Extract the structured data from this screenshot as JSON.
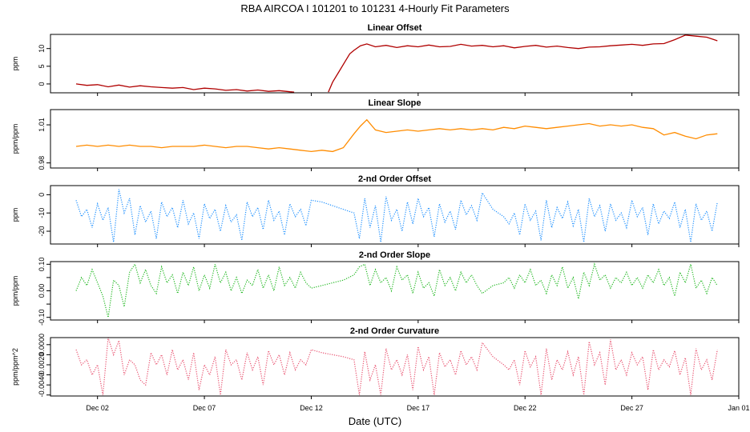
{
  "title": "RBA   AIRCOA I   101201 to 101231   4-Hourly Fit Parameters",
  "chart_data": [
    {
      "type": "line",
      "title": "Linear Offset",
      "ylabel": "ppm",
      "color": "#b00000",
      "dotted": false,
      "ylim": [
        -2.5,
        14
      ],
      "yticks": [
        0,
        5,
        10
      ],
      "ytick_labels": [
        "0",
        "5",
        "10"
      ],
      "x": [
        1.0,
        1.5,
        2.0,
        2.5,
        3.0,
        3.5,
        4.0,
        4.5,
        5.0,
        5.5,
        6.0,
        6.5,
        7.0,
        7.5,
        8.0,
        8.5,
        9.0,
        9.5,
        10.0,
        10.5,
        11.0,
        11.2,
        11.6,
        12.0,
        12.4,
        12.8,
        13.0,
        13.3,
        13.6,
        13.8,
        14.0,
        14.3,
        14.6,
        15.0,
        15.5,
        16.0,
        16.5,
        17.0,
        17.5,
        18.0,
        18.5,
        19.0,
        19.5,
        20.0,
        20.5,
        21.0,
        21.5,
        22.0,
        22.5,
        23.0,
        23.5,
        24.0,
        24.5,
        25.0,
        25.5,
        26.0,
        26.5,
        27.0,
        27.5,
        28.0,
        28.5,
        29.0,
        29.5,
        30.0,
        30.5,
        31.0
      ],
      "y": [
        0.0,
        -0.4,
        -0.2,
        -0.8,
        -0.3,
        -0.9,
        -0.5,
        -0.8,
        -1.0,
        -1.2,
        -1.0,
        -1.6,
        -1.2,
        -1.4,
        -1.8,
        -1.6,
        -2.0,
        -1.7,
        -2.1,
        -1.9,
        -2.2,
        -2.3,
        null,
        -2.4,
        null,
        -2.3,
        0.5,
        3.5,
        6.5,
        8.5,
        9.5,
        10.8,
        11.3,
        10.5,
        10.9,
        10.3,
        10.8,
        10.5,
        11.0,
        10.5,
        10.6,
        11.2,
        10.7,
        10.9,
        10.5,
        10.8,
        10.2,
        10.6,
        10.9,
        10.4,
        10.7,
        10.3,
        10.0,
        10.4,
        10.5,
        10.8,
        11.0,
        11.2,
        10.9,
        11.3,
        11.4,
        12.5,
        13.8,
        13.5,
        13.2,
        12.2
      ]
    },
    {
      "type": "line",
      "title": "Linear Slope",
      "ylabel": "ppm/ppm",
      "color": "#ff8c00",
      "dotted": false,
      "ylim": [
        0.976,
        1.022
      ],
      "yticks": [
        0.98,
        1.01
      ],
      "ytick_labels": [
        "0.98",
        "1.01"
      ],
      "x": [
        1.0,
        1.5,
        2.0,
        2.5,
        3.0,
        3.5,
        4.0,
        4.5,
        5.0,
        5.5,
        6.0,
        6.5,
        7.0,
        7.5,
        8.0,
        8.5,
        9.0,
        9.5,
        10.0,
        10.5,
        11.0,
        11.5,
        12.0,
        12.5,
        13.0,
        13.5,
        14.0,
        14.3,
        14.6,
        15.0,
        15.5,
        16.0,
        16.5,
        17.0,
        17.5,
        18.0,
        18.5,
        19.0,
        19.5,
        20.0,
        20.5,
        21.0,
        21.5,
        22.0,
        22.5,
        23.0,
        23.5,
        24.0,
        24.5,
        25.0,
        25.5,
        26.0,
        26.5,
        27.0,
        27.5,
        28.0,
        28.5,
        29.0,
        29.5,
        30.0,
        30.5,
        31.0
      ],
      "y": [
        0.993,
        0.994,
        0.993,
        0.994,
        0.993,
        0.994,
        0.993,
        0.993,
        0.992,
        0.993,
        0.993,
        0.993,
        0.994,
        0.993,
        0.992,
        0.993,
        0.993,
        0.992,
        0.991,
        0.992,
        0.991,
        0.99,
        0.989,
        0.99,
        0.989,
        0.992,
        1.003,
        1.009,
        1.014,
        1.006,
        1.004,
        1.005,
        1.006,
        1.005,
        1.006,
        1.007,
        1.006,
        1.007,
        1.006,
        1.007,
        1.006,
        1.008,
        1.007,
        1.009,
        1.008,
        1.007,
        1.008,
        1.009,
        1.01,
        1.011,
        1.009,
        1.01,
        1.009,
        1.01,
        1.008,
        1.007,
        1.002,
        1.004,
        1.001,
        0.999,
        1.002,
        1.003
      ]
    },
    {
      "type": "line",
      "title": "2-nd Order Offset",
      "ylabel": "ppm",
      "color": "#1e90ff",
      "dotted": true,
      "ylim": [
        -27,
        5
      ],
      "yticks": [
        0,
        -10,
        -20
      ],
      "extra_tick": -25,
      "ytick_labels": [
        "0",
        "-10",
        "-20"
      ],
      "x": [
        1.0,
        1.25,
        1.5,
        1.75,
        2.0,
        2.25,
        2.5,
        2.75,
        3.0,
        3.25,
        3.5,
        3.75,
        4.0,
        4.25,
        4.5,
        4.75,
        5.0,
        5.25,
        5.5,
        5.75,
        6.0,
        6.25,
        6.5,
        6.75,
        7.0,
        7.25,
        7.5,
        7.75,
        8.0,
        8.25,
        8.5,
        8.75,
        9.0,
        9.25,
        9.5,
        9.75,
        10.0,
        10.25,
        10.5,
        10.75,
        11.0,
        11.25,
        11.5,
        11.75,
        12.0,
        12.5,
        13.0,
        13.5,
        14.0,
        14.25,
        14.5,
        14.75,
        15.0,
        15.25,
        15.5,
        15.75,
        16.0,
        16.25,
        16.5,
        16.75,
        17.0,
        17.25,
        17.5,
        17.75,
        18.0,
        18.25,
        18.5,
        18.75,
        19.0,
        19.25,
        19.5,
        19.75,
        20.0,
        20.5,
        21.0,
        21.25,
        21.5,
        21.75,
        22.0,
        22.25,
        22.5,
        22.75,
        23.0,
        23.25,
        23.5,
        23.75,
        24.0,
        24.25,
        24.5,
        24.75,
        25.0,
        25.25,
        25.5,
        25.75,
        26.0,
        26.25,
        26.5,
        26.75,
        27.0,
        27.25,
        27.5,
        27.75,
        28.0,
        28.25,
        28.5,
        28.75,
        29.0,
        29.25,
        29.5,
        29.75,
        30.0,
        30.25,
        30.5,
        30.75,
        31.0
      ],
      "y": [
        -3,
        -12,
        -8,
        -18,
        -5,
        -14,
        -7,
        -26,
        3,
        -10,
        -2,
        -22,
        -6,
        -15,
        -9,
        -24,
        -4,
        -12,
        -7,
        -18,
        -3,
        -16,
        -10,
        -24,
        -5,
        -13,
        -8,
        -20,
        -6,
        -15,
        -11,
        -25,
        -4,
        -12,
        -7,
        -19,
        -3,
        -14,
        -9,
        -22,
        -5,
        -12,
        -8,
        -17,
        -3,
        -4,
        -6,
        -8,
        -10,
        -24,
        -2,
        -18,
        -6,
        -26,
        -1,
        -14,
        -8,
        -20,
        -4,
        -16,
        -2,
        -12,
        -7,
        -23,
        -5,
        -15,
        -9,
        -19,
        -3,
        -11,
        -6,
        -14,
        1,
        -8,
        -12,
        -16,
        -10,
        -22,
        -5,
        -14,
        -9,
        -25,
        -3,
        -18,
        -7,
        -13,
        -4,
        -17,
        -8,
        -26,
        -2,
        -12,
        -6,
        -20,
        -5,
        -14,
        -10,
        -18,
        -3,
        -12,
        -7,
        -22,
        -5,
        -16,
        -9,
        -13,
        -4,
        -18,
        -8,
        -26,
        -5,
        -14,
        -9,
        -20,
        -4
      ]
    },
    {
      "type": "line",
      "title": "2-nd Order Slope",
      "ylabel": "ppm/ppm",
      "color": "#22b822",
      "dotted": true,
      "ylim": [
        -0.11,
        0.11
      ],
      "yticks": [
        0.1,
        0.05,
        0.0,
        -0.05,
        -0.1
      ],
      "ytick_labels": [
        "0.10",
        "",
        "0.00",
        "",
        "-0.10"
      ],
      "x": [
        1.0,
        1.25,
        1.5,
        1.75,
        2.0,
        2.25,
        2.5,
        2.75,
        3.0,
        3.25,
        3.5,
        3.75,
        4.0,
        4.25,
        4.5,
        4.75,
        5.0,
        5.25,
        5.5,
        5.75,
        6.0,
        6.25,
        6.5,
        6.75,
        7.0,
        7.25,
        7.5,
        7.75,
        8.0,
        8.25,
        8.5,
        8.75,
        9.0,
        9.25,
        9.5,
        9.75,
        10.0,
        10.25,
        10.5,
        10.75,
        11.0,
        11.25,
        11.5,
        11.75,
        12.0,
        12.5,
        13.0,
        13.5,
        14.0,
        14.25,
        14.5,
        14.75,
        15.0,
        15.25,
        15.5,
        15.75,
        16.0,
        16.25,
        16.5,
        16.75,
        17.0,
        17.25,
        17.5,
        17.75,
        18.0,
        18.25,
        18.5,
        18.75,
        19.0,
        19.25,
        19.5,
        19.75,
        20.0,
        20.5,
        21.0,
        21.25,
        21.5,
        21.75,
        22.0,
        22.25,
        22.5,
        22.75,
        23.0,
        23.25,
        23.5,
        23.75,
        24.0,
        24.25,
        24.5,
        24.75,
        25.0,
        25.25,
        25.5,
        25.75,
        26.0,
        26.25,
        26.5,
        26.75,
        27.0,
        27.25,
        27.5,
        27.75,
        28.0,
        28.25,
        28.5,
        28.75,
        29.0,
        29.25,
        29.5,
        29.75,
        30.0,
        30.25,
        30.5,
        30.75,
        31.0
      ],
      "y": [
        0.0,
        0.05,
        0.02,
        0.08,
        0.03,
        -0.02,
        -0.1,
        0.04,
        0.02,
        -0.06,
        0.07,
        0.1,
        0.03,
        0.08,
        0.02,
        -0.01,
        0.09,
        0.03,
        0.06,
        -0.01,
        0.07,
        0.02,
        0.09,
        0.0,
        0.06,
        0.01,
        0.1,
        0.03,
        0.07,
        0.0,
        0.05,
        -0.01,
        0.04,
        0.02,
        0.08,
        0.01,
        0.06,
        0.0,
        0.09,
        0.02,
        0.05,
        0.01,
        0.07,
        0.03,
        0.01,
        0.02,
        0.03,
        0.04,
        0.06,
        0.09,
        0.1,
        0.02,
        0.08,
        0.03,
        0.05,
        0.0,
        0.09,
        0.04,
        0.06,
        -0.01,
        0.07,
        0.01,
        0.03,
        -0.02,
        0.08,
        0.02,
        0.05,
        0.0,
        0.07,
        0.03,
        0.06,
        0.02,
        -0.01,
        0.02,
        0.03,
        0.05,
        0.01,
        0.06,
        0.03,
        0.08,
        0.02,
        0.04,
        -0.01,
        0.06,
        0.02,
        0.09,
        0.01,
        0.05,
        -0.03,
        0.07,
        0.02,
        0.1,
        0.04,
        0.06,
        0.01,
        0.05,
        0.03,
        0.07,
        0.02,
        0.05,
        0.01,
        0.06,
        0.03,
        0.08,
        0.02,
        0.05,
        -0.02,
        0.07,
        0.03,
        0.1,
        0.01,
        0.04,
        -0.01,
        0.05,
        0.02
      ]
    },
    {
      "type": "line",
      "title": "2-nd Order Curvature",
      "ylabel": "ppm/ppm^2",
      "color": "#e8506e",
      "dotted": true,
      "ylim": [
        -0.0051,
        0.0007
      ],
      "yticks": [
        0.0,
        -0.001,
        -0.002,
        -0.003,
        -0.004,
        -0.005
      ],
      "ytick_labels": [
        "0.0000",
        "",
        "-0.0020",
        "",
        "-0.0040",
        ""
      ],
      "extra_labels": {
        "0.0005": "0.0005",
        "-0.0005": "-0.0005",
        "-0.0015": "-0.0015",
        "-0.0025": "-0.0025",
        "-0.0035": "-0.0035",
        "-0.0045": "-0.0045"
      },
      "x": [
        1.0,
        1.25,
        1.5,
        1.75,
        2.0,
        2.25,
        2.5,
        2.75,
        3.0,
        3.25,
        3.5,
        3.75,
        4.0,
        4.25,
        4.5,
        4.75,
        5.0,
        5.25,
        5.5,
        5.75,
        6.0,
        6.25,
        6.5,
        6.75,
        7.0,
        7.25,
        7.5,
        7.75,
        8.0,
        8.25,
        8.5,
        8.75,
        9.0,
        9.25,
        9.5,
        9.75,
        10.0,
        10.25,
        10.5,
        10.75,
        11.0,
        11.25,
        11.5,
        11.75,
        12.0,
        12.5,
        13.0,
        13.5,
        14.0,
        14.25,
        14.5,
        14.75,
        15.0,
        15.25,
        15.5,
        15.75,
        16.0,
        16.25,
        16.5,
        16.75,
        17.0,
        17.25,
        17.5,
        17.75,
        18.0,
        18.25,
        18.5,
        18.75,
        19.0,
        19.25,
        19.5,
        19.75,
        20.0,
        20.5,
        21.0,
        21.25,
        21.5,
        21.75,
        22.0,
        22.25,
        22.5,
        22.75,
        23.0,
        23.25,
        23.5,
        23.75,
        24.0,
        24.25,
        24.5,
        24.75,
        25.0,
        25.25,
        25.5,
        25.75,
        26.0,
        26.25,
        26.5,
        26.75,
        27.0,
        27.25,
        27.5,
        27.75,
        28.0,
        28.25,
        28.5,
        28.75,
        29.0,
        29.25,
        29.5,
        29.75,
        30.0,
        30.25,
        30.5,
        30.75,
        31.0
      ],
      "y": [
        -0.0005,
        -0.002,
        -0.0015,
        -0.003,
        -0.002,
        -0.005,
        0.0007,
        -0.001,
        0.0004,
        -0.003,
        -0.0015,
        -0.002,
        -0.0035,
        -0.004,
        -0.0008,
        -0.002,
        -0.001,
        -0.003,
        -0.0005,
        -0.0025,
        -0.0015,
        -0.0035,
        -0.0008,
        -0.0045,
        -0.002,
        -0.003,
        -0.0012,
        -0.005,
        -0.0005,
        -0.002,
        -0.0015,
        -0.0035,
        -0.0008,
        -0.0025,
        -0.0012,
        -0.004,
        -0.0006,
        -0.002,
        -0.001,
        -0.003,
        -0.0008,
        -0.0025,
        -0.0015,
        -0.002,
        -0.0005,
        -0.0008,
        -0.001,
        -0.0012,
        -0.0015,
        -0.005,
        -0.0007,
        -0.0035,
        -0.002,
        -0.005,
        -0.0004,
        -0.0025,
        -0.0015,
        -0.003,
        -0.001,
        -0.0045,
        -0.0002,
        -0.0025,
        -0.0012,
        -0.005,
        -0.0008,
        -0.0022,
        -0.0015,
        -0.003,
        -0.0006,
        -0.002,
        -0.0012,
        -0.0025,
        0.0002,
        -0.0012,
        -0.002,
        -0.0025,
        -0.0015,
        -0.004,
        -0.0006,
        -0.0022,
        -0.0012,
        -0.005,
        -0.0004,
        -0.0035,
        -0.0015,
        -0.0025,
        -0.0007,
        -0.003,
        -0.0012,
        -0.005,
        0.0003,
        -0.002,
        -0.0008,
        -0.004,
        0.0005,
        -0.0025,
        -0.0015,
        -0.003,
        -0.0008,
        -0.002,
        -0.0012,
        -0.0045,
        -0.0005,
        -0.0025,
        -0.0015,
        -0.0022,
        -0.0006,
        -0.003,
        -0.0013,
        -0.005,
        -0.0004,
        -0.0025,
        -0.0015,
        -0.0035,
        -0.0005
      ]
    }
  ],
  "xaxis": {
    "xlabel": "Date (UTC)",
    "xlim": [
      -0.2,
      32.0
    ],
    "ticks": [
      2,
      7,
      12,
      17,
      22,
      27,
      32
    ],
    "tick_labels": [
      "Dec 02",
      "Dec 07",
      "Dec 12",
      "Dec 17",
      "Dec 22",
      "Dec 27",
      "Jan 01"
    ]
  }
}
